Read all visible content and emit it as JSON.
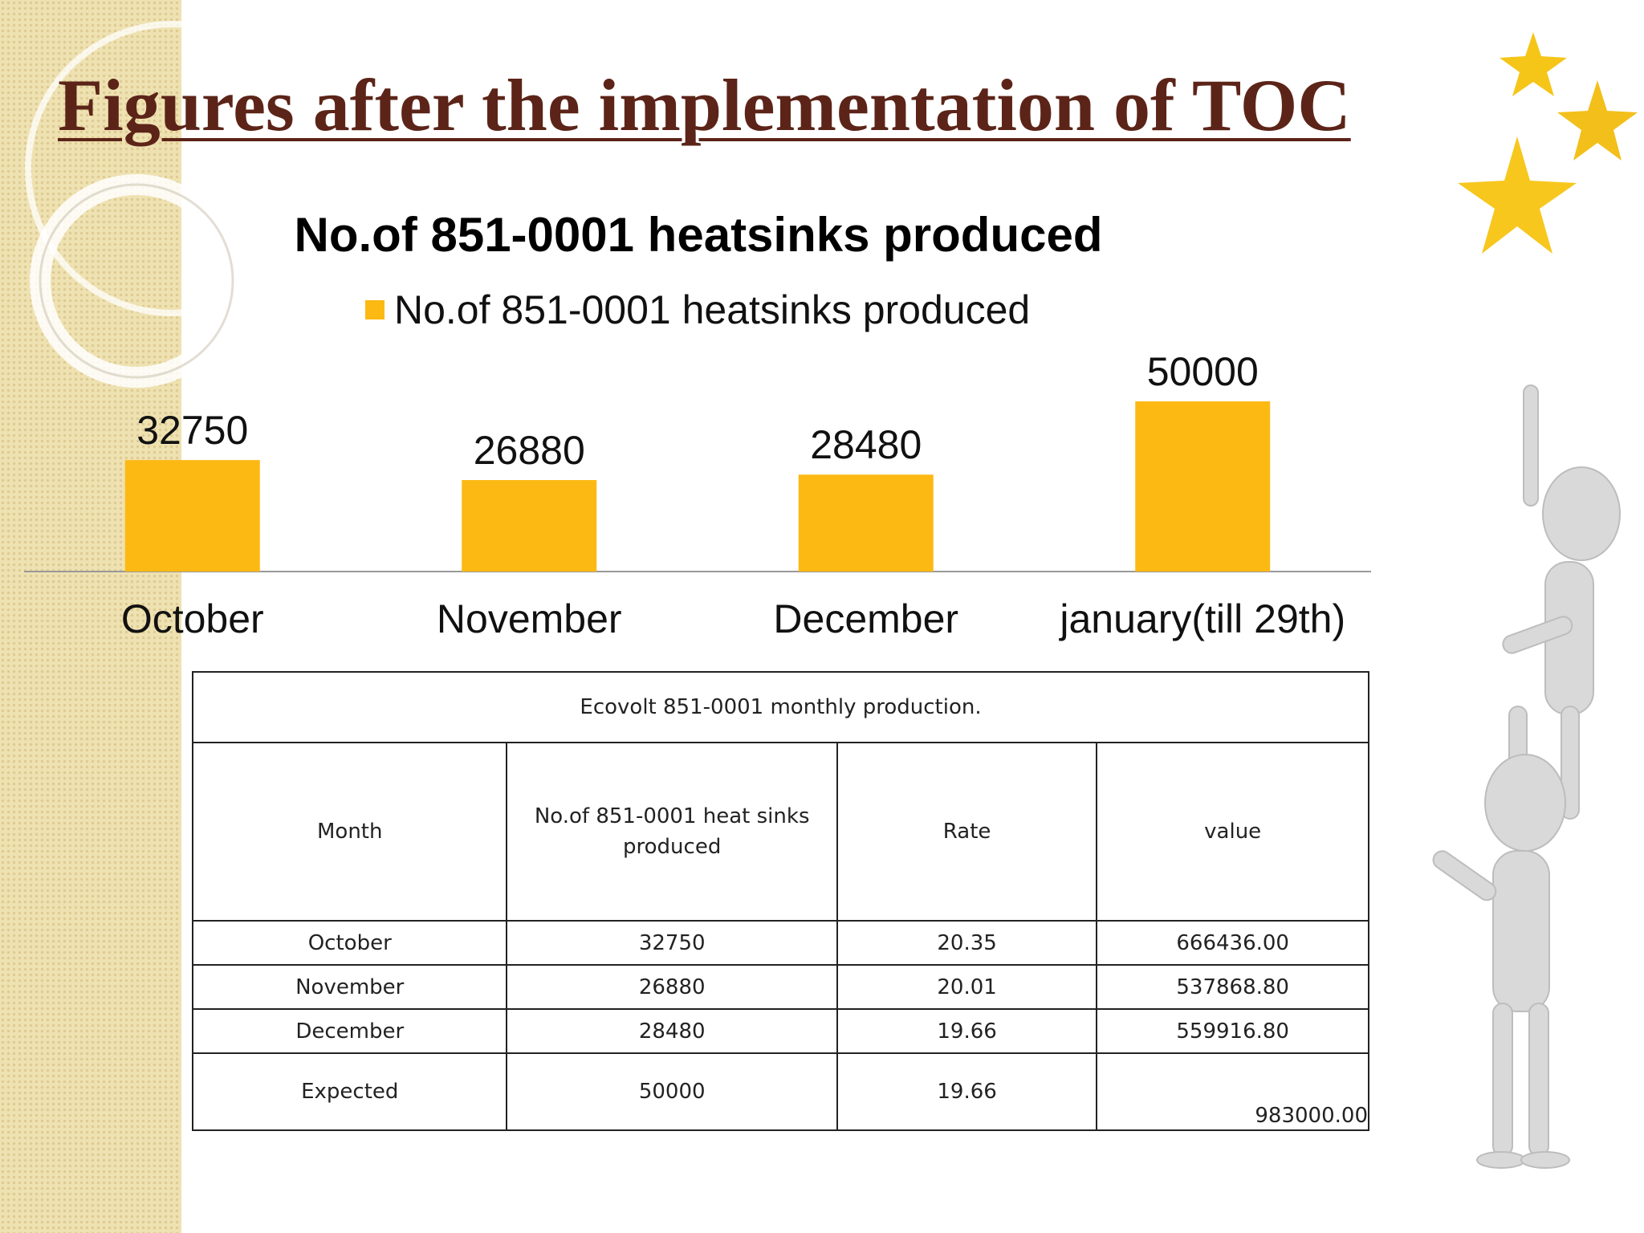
{
  "slide": {
    "title": "Figures after the implementation of TOC"
  },
  "chart_data": {
    "type": "bar",
    "title": "No.of 851-0001 heatsinks produced",
    "categories": [
      "October",
      "November",
      "December",
      "january(till 29th)"
    ],
    "series": [
      {
        "name": "No.of 851-0001 heatsinks produced",
        "values": [
          32750,
          26880,
          28480,
          50000
        ]
      }
    ],
    "data_labels": [
      "32750",
      "26880",
      "28480",
      "50000"
    ],
    "legend_position": "top",
    "bar_color": "#fdb913",
    "grid": false,
    "ylim": [
      0,
      50000
    ]
  },
  "table": {
    "caption": "Ecovolt 851-0001 monthly production.",
    "headers": [
      "Month",
      "No.of 851-0001 heat sinks produced",
      "Rate",
      "value"
    ],
    "rows": [
      [
        "October",
        "32750",
        "20.35",
        "666436.00"
      ],
      [
        "November",
        "26880",
        "20.01",
        "537868.80"
      ],
      [
        "December",
        "28480",
        "19.66",
        "559916.80"
      ],
      [
        "Expected",
        "50000",
        "19.66",
        "983000.00"
      ]
    ]
  },
  "colors": {
    "title": "#5c2418",
    "bar": "#fdb913",
    "band": "#efe2b2",
    "star": "#f5c518"
  },
  "decorations": {
    "band_pattern": "beige-dotted-band",
    "circles": "arc-decoration",
    "stars": "star-icon",
    "figures": "stick-figures-climbing-illustration"
  }
}
